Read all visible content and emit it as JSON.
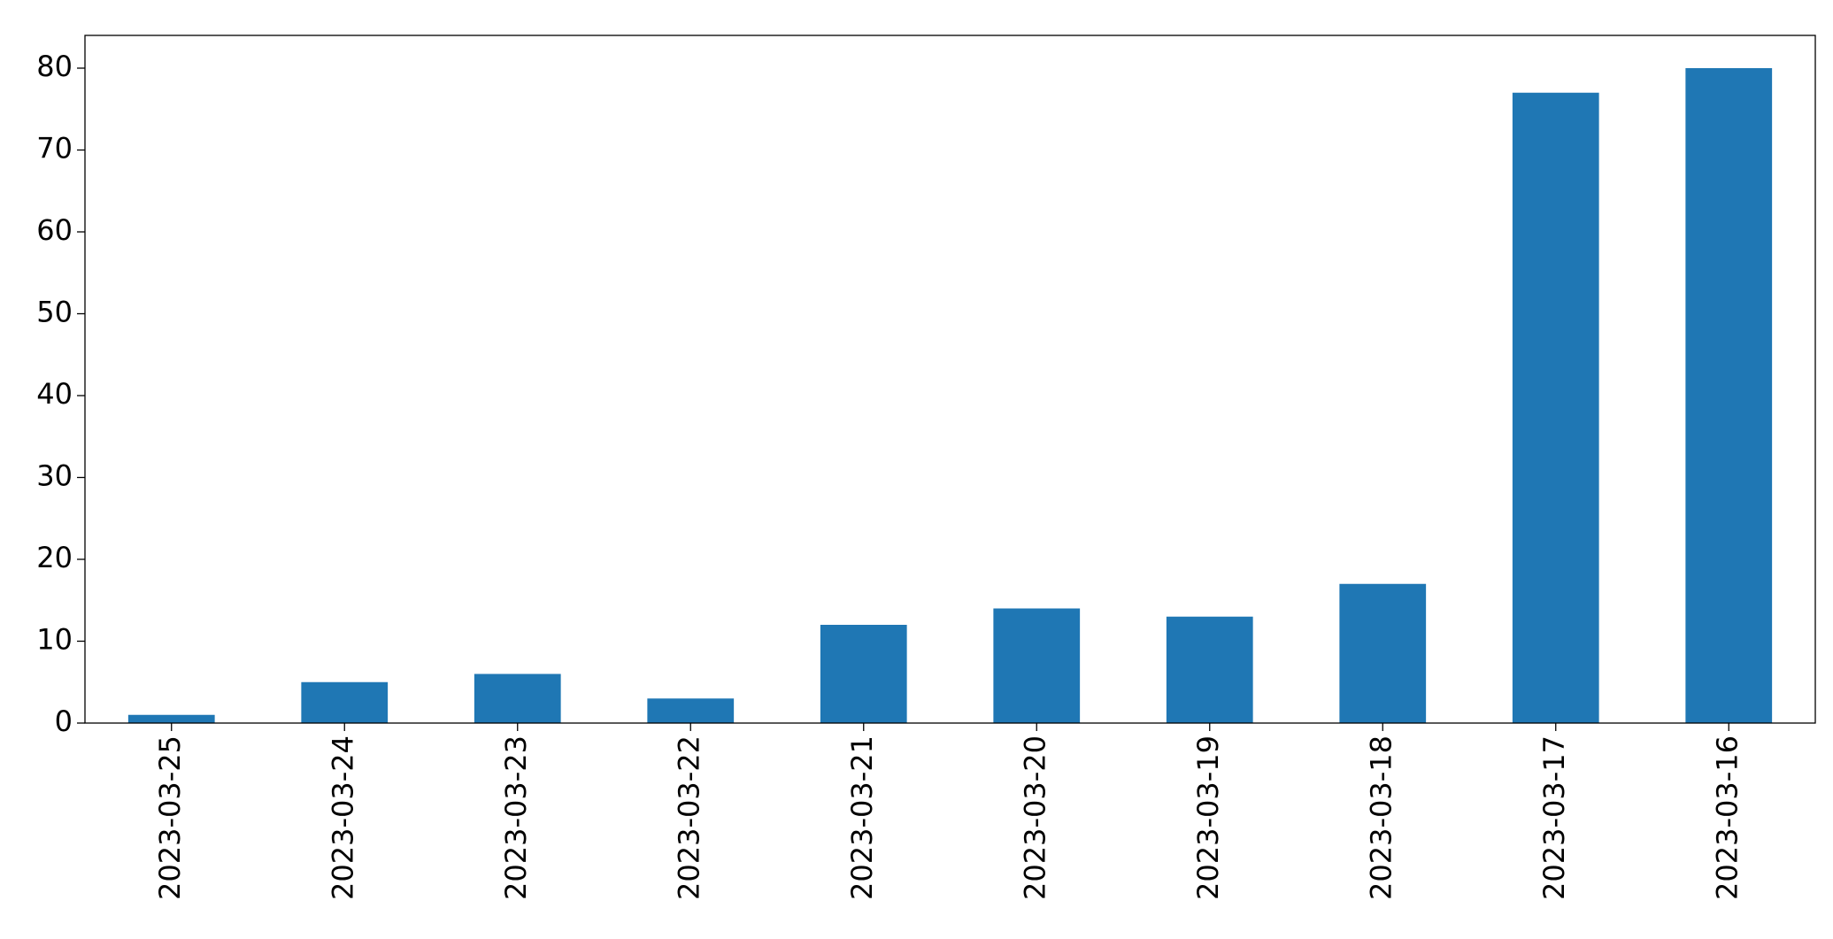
{
  "chart_data": {
    "type": "bar",
    "categories": [
      "2023-03-25",
      "2023-03-24",
      "2023-03-23",
      "2023-03-22",
      "2023-03-21",
      "2023-03-20",
      "2023-03-19",
      "2023-03-18",
      "2023-03-17",
      "2023-03-16"
    ],
    "values": [
      1,
      5,
      6,
      3,
      12,
      14,
      13,
      17,
      77,
      80
    ],
    "color": "#1f77b4",
    "ylim": [
      0,
      84
    ],
    "yticks": [
      0,
      10,
      20,
      30,
      40,
      50,
      60,
      70,
      80
    ],
    "grid": false
  }
}
